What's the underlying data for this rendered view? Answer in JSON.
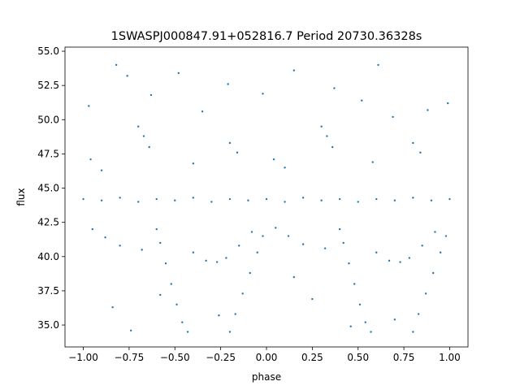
{
  "chart_data": {
    "type": "scatter",
    "title": "1SWASPJ000847.91+052816.7 Period 20730.36328s",
    "xlabel": "phase",
    "ylabel": "flux",
    "xlim": [
      -1.1,
      1.1
    ],
    "ylim": [
      33.4,
      55.3
    ],
    "xticks": [
      {
        "value": -1.0,
        "label": "−1.00"
      },
      {
        "value": -0.75,
        "label": "−0.75"
      },
      {
        "value": -0.5,
        "label": "−0.50"
      },
      {
        "value": -0.25,
        "label": "−0.25"
      },
      {
        "value": 0.0,
        "label": "0.00"
      },
      {
        "value": 0.25,
        "label": "0.25"
      },
      {
        "value": 0.5,
        "label": "0.50"
      },
      {
        "value": 0.75,
        "label": "0.75"
      },
      {
        "value": 1.0,
        "label": "1.00"
      }
    ],
    "yticks": [
      {
        "value": 35.0,
        "label": "35.0"
      },
      {
        "value": 37.5,
        "label": "37.5"
      },
      {
        "value": 40.0,
        "label": "40.0"
      },
      {
        "value": 42.5,
        "label": "42.5"
      },
      {
        "value": 45.0,
        "label": "45.0"
      },
      {
        "value": 47.5,
        "label": "47.5"
      },
      {
        "value": 50.0,
        "label": "50.0"
      },
      {
        "value": 52.5,
        "label": "52.5"
      },
      {
        "value": 55.0,
        "label": "55.0"
      }
    ],
    "grid": false,
    "marker_color": "#1f77b4",
    "series": [
      {
        "values": [
          {
            "x": -1.0,
            "y": 44.2
          },
          {
            "x": -0.9,
            "y": 44.1
          },
          {
            "x": -0.8,
            "y": 44.3
          },
          {
            "x": -0.7,
            "y": 44.0
          },
          {
            "x": -0.6,
            "y": 44.2
          },
          {
            "x": -0.5,
            "y": 44.1
          },
          {
            "x": -0.4,
            "y": 44.3
          },
          {
            "x": -0.3,
            "y": 44.0
          },
          {
            "x": -0.2,
            "y": 44.2
          },
          {
            "x": -0.1,
            "y": 44.1
          },
          {
            "x": 0.0,
            "y": 44.2
          },
          {
            "x": 0.1,
            "y": 44.0
          },
          {
            "x": 0.2,
            "y": 44.3
          },
          {
            "x": 0.3,
            "y": 44.1
          },
          {
            "x": 0.4,
            "y": 44.2
          },
          {
            "x": 0.5,
            "y": 44.0
          },
          {
            "x": 0.6,
            "y": 44.2
          },
          {
            "x": 0.7,
            "y": 44.1
          },
          {
            "x": 0.8,
            "y": 44.3
          },
          {
            "x": 0.9,
            "y": 44.1
          },
          {
            "x": 1.0,
            "y": 44.2
          },
          {
            "x": -0.58,
            "y": 41.0
          },
          {
            "x": -0.55,
            "y": 39.5
          },
          {
            "x": -0.52,
            "y": 38.0
          },
          {
            "x": -0.49,
            "y": 36.5
          },
          {
            "x": -0.46,
            "y": 35.2
          },
          {
            "x": -0.43,
            "y": 34.5
          },
          {
            "x": -0.2,
            "y": 34.5
          },
          {
            "x": -0.17,
            "y": 35.8
          },
          {
            "x": -0.13,
            "y": 37.3
          },
          {
            "x": -0.09,
            "y": 38.8
          },
          {
            "x": -0.05,
            "y": 40.3
          },
          {
            "x": -0.02,
            "y": 41.5
          },
          {
            "x": 0.42,
            "y": 41.0
          },
          {
            "x": 0.45,
            "y": 39.5
          },
          {
            "x": 0.48,
            "y": 38.0
          },
          {
            "x": 0.51,
            "y": 36.5
          },
          {
            "x": 0.54,
            "y": 35.2
          },
          {
            "x": 0.57,
            "y": 34.5
          },
          {
            "x": 0.8,
            "y": 34.5
          },
          {
            "x": 0.83,
            "y": 35.8
          },
          {
            "x": 0.87,
            "y": 37.3
          },
          {
            "x": 0.91,
            "y": 38.8
          },
          {
            "x": 0.95,
            "y": 40.3
          },
          {
            "x": 0.98,
            "y": 41.5
          },
          {
            "x": -0.95,
            "y": 42.0
          },
          {
            "x": -0.88,
            "y": 41.4
          },
          {
            "x": -0.8,
            "y": 40.8
          },
          {
            "x": -0.68,
            "y": 40.5
          },
          {
            "x": -0.6,
            "y": 42.0
          },
          {
            "x": -0.4,
            "y": 40.3
          },
          {
            "x": -0.33,
            "y": 39.7
          },
          {
            "x": -0.27,
            "y": 39.6
          },
          {
            "x": -0.22,
            "y": 39.9
          },
          {
            "x": -0.15,
            "y": 40.8
          },
          {
            "x": -0.08,
            "y": 41.8
          },
          {
            "x": 0.05,
            "y": 42.1
          },
          {
            "x": 0.12,
            "y": 41.5
          },
          {
            "x": 0.2,
            "y": 40.9
          },
          {
            "x": 0.32,
            "y": 40.6
          },
          {
            "x": 0.4,
            "y": 42.0
          },
          {
            "x": 0.6,
            "y": 40.3
          },
          {
            "x": 0.67,
            "y": 39.7
          },
          {
            "x": 0.73,
            "y": 39.6
          },
          {
            "x": 0.78,
            "y": 39.9
          },
          {
            "x": 0.85,
            "y": 40.8
          },
          {
            "x": 0.92,
            "y": 41.8
          },
          {
            "x": -0.7,
            "y": 49.5
          },
          {
            "x": -0.67,
            "y": 48.8
          },
          {
            "x": -0.64,
            "y": 48.0
          },
          {
            "x": 0.3,
            "y": 49.5
          },
          {
            "x": 0.33,
            "y": 48.8
          },
          {
            "x": 0.36,
            "y": 48.0
          },
          {
            "x": -0.2,
            "y": 48.3
          },
          {
            "x": -0.16,
            "y": 47.6
          },
          {
            "x": 0.8,
            "y": 48.3
          },
          {
            "x": 0.84,
            "y": 47.6
          },
          {
            "x": -0.96,
            "y": 47.1
          },
          {
            "x": 0.04,
            "y": 47.1
          },
          {
            "x": -0.97,
            "y": 51.0
          },
          {
            "x": -0.82,
            "y": 54.0
          },
          {
            "x": -0.76,
            "y": 53.2
          },
          {
            "x": -0.63,
            "y": 51.8
          },
          {
            "x": -0.48,
            "y": 53.4
          },
          {
            "x": -0.35,
            "y": 50.6
          },
          {
            "x": -0.21,
            "y": 52.6
          },
          {
            "x": -0.02,
            "y": 51.9
          },
          {
            "x": 0.15,
            "y": 53.6
          },
          {
            "x": 0.37,
            "y": 52.3
          },
          {
            "x": 0.52,
            "y": 51.4
          },
          {
            "x": 0.69,
            "y": 50.2
          },
          {
            "x": 0.88,
            "y": 50.7
          },
          {
            "x": 0.99,
            "y": 51.2
          },
          {
            "x": 0.61,
            "y": 54.0
          },
          {
            "x": -0.9,
            "y": 46.3
          },
          {
            "x": -0.4,
            "y": 46.8
          },
          {
            "x": 0.1,
            "y": 46.5
          },
          {
            "x": 0.58,
            "y": 46.9
          },
          {
            "x": -0.58,
            "y": 37.2
          },
          {
            "x": -0.26,
            "y": 35.7
          },
          {
            "x": 0.25,
            "y": 36.9
          },
          {
            "x": 0.7,
            "y": 35.4
          },
          {
            "x": -0.84,
            "y": 36.3
          },
          {
            "x": 0.15,
            "y": 38.5
          },
          {
            "x": -0.74,
            "y": 34.6
          },
          {
            "x": 0.46,
            "y": 34.9
          }
        ]
      }
    ]
  }
}
